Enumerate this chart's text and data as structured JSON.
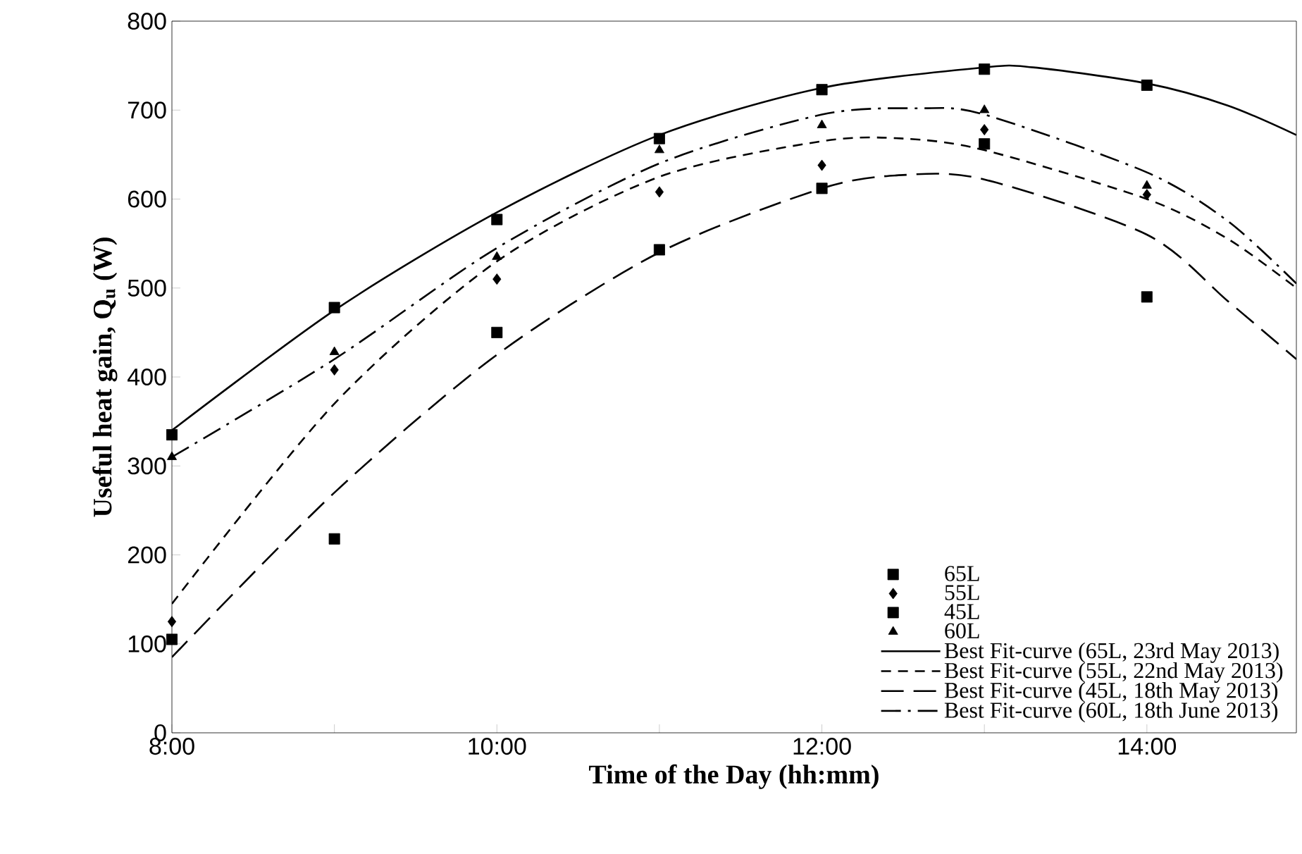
{
  "chart_data": {
    "type": "scatter",
    "xlabel": "Time of the Day (hh:mm)",
    "ylabel": "Useful heat gain, Q$_{u}$ (W)",
    "xlim": [
      8,
      14.92
    ],
    "ylim": [
      0,
      800
    ],
    "xticks": [
      {
        "value": 8,
        "label": "8:00"
      },
      {
        "value": 9,
        "label": null
      },
      {
        "value": 10,
        "label": "10:00"
      },
      {
        "value": 11,
        "label": null
      },
      {
        "value": 12,
        "label": "12:00"
      },
      {
        "value": 13,
        "label": null
      },
      {
        "value": 14,
        "label": "14:00"
      }
    ],
    "yticks": [
      0,
      100,
      200,
      300,
      400,
      500,
      600,
      700,
      800
    ],
    "legend": "bottom right",
    "grid": false,
    "series": [
      {
        "name": "65L",
        "marker": "square",
        "color": "#000000",
        "x": [
          8,
          9,
          10,
          11,
          12,
          13,
          14
        ],
        "values": [
          335,
          478,
          577,
          668,
          723,
          746,
          728
        ]
      },
      {
        "name": "55L",
        "marker": "diamond",
        "color": "#000000",
        "x": [
          8,
          9,
          10,
          11,
          12,
          13,
          14
        ],
        "values": [
          125,
          408,
          510,
          608,
          638,
          678,
          605
        ]
      },
      {
        "name": "45L",
        "marker": "square",
        "color": "#000000",
        "x": [
          8,
          9,
          10,
          11,
          12,
          13,
          14
        ],
        "values": [
          105,
          218,
          450,
          543,
          612,
          662,
          490
        ]
      },
      {
        "name": "60L",
        "marker": "triangle",
        "color": "#000000",
        "x": [
          8,
          9,
          10,
          11,
          12,
          13,
          14
        ],
        "values": [
          310,
          428,
          535,
          655,
          683,
          700,
          615
        ]
      },
      {
        "name": "Best Fit-curve (65L, 23rd May 2013)",
        "type": "line",
        "line_style": "solid",
        "color": "#000000",
        "x": [
          8,
          9,
          10,
          11,
          12,
          13,
          13.3,
          14,
          14.5,
          14.92
        ],
        "values": [
          340,
          475,
          585,
          672,
          725,
          748,
          748,
          730,
          705,
          672
        ]
      },
      {
        "name": "Best Fit-curve (55L, 22nd May 2013)",
        "type": "line",
        "line_style": "dashed",
        "color": "#000000",
        "x": [
          8,
          9,
          10,
          11,
          12,
          12.5,
          13,
          14,
          14.5,
          14.92
        ],
        "values": [
          145,
          370,
          530,
          625,
          665,
          668,
          655,
          600,
          555,
          500
        ]
      },
      {
        "name": "Best Fit-curve (45L, 18th May 2013)",
        "type": "line",
        "line_style": "long dashed",
        "color": "#000000",
        "x": [
          8,
          9,
          10,
          11,
          12,
          12.5,
          13,
          14,
          14.5,
          14.92
        ],
        "values": [
          85,
          270,
          425,
          540,
          612,
          627,
          622,
          560,
          485,
          420
        ]
      },
      {
        "name": "Best Fit-curve (60L, 18th June 2013)",
        "type": "line",
        "line_style": "dash dot",
        "color": "#000000",
        "x": [
          8,
          9,
          10,
          11,
          12,
          12.6,
          13,
          14,
          14.5,
          14.92
        ],
        "values": [
          310,
          420,
          545,
          640,
          695,
          702,
          695,
          630,
          575,
          505
        ]
      }
    ]
  }
}
